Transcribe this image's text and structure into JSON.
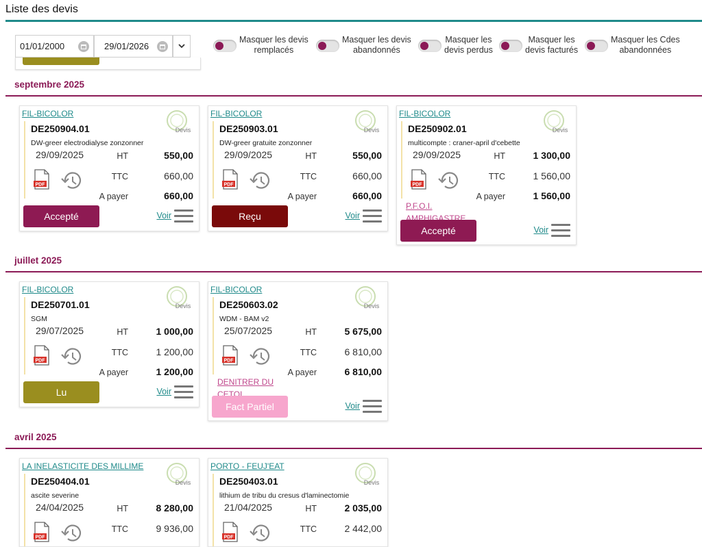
{
  "page": {
    "title": "Liste des devis"
  },
  "filters": {
    "date_from": "01/01/2000",
    "date_to": "29/01/2026",
    "toggles": [
      {
        "line1": "Masquer les devis",
        "line2": "remplacés"
      },
      {
        "line1": "Masquer les devis",
        "line2": "abandonnés"
      },
      {
        "line1": "Masquer les",
        "line2": "devis perdus"
      },
      {
        "line1": "Masquer les",
        "line2": "devis facturés"
      },
      {
        "line1": "Masquer les Cdes",
        "line2": "abandonnées"
      }
    ]
  },
  "labels": {
    "ht": "HT",
    "ttc": "TTC",
    "a_payer": "A payer",
    "voir": "Voir",
    "stamp": "Devis"
  },
  "colors": {
    "accent": "#8b1a56",
    "teal": "#1f8a8a",
    "accepte": "#8e1a53",
    "recu": "#7a0a0a",
    "lu": "#9a8e1f",
    "fact_partiel": "#f7a6cd"
  },
  "months": [
    {
      "label": "septembre 2025",
      "cards": [
        {
          "client": "FIL-BICOLOR",
          "number": "DE250904.01",
          "description": "DW-greer electrodialyse zonzonner",
          "date": "29/09/2025",
          "ht": "550,00",
          "ttc": "660,00",
          "a_payer": "660,00",
          "link": "",
          "status": "Accepté"
        },
        {
          "client": "FIL-BICOLOR",
          "number": "DE250903.01",
          "description": "DW-greer gratuite zonzonner",
          "date": "29/09/2025",
          "ht": "550,00",
          "ttc": "660,00",
          "a_payer": "660,00",
          "link": "",
          "status": "Reçu"
        },
        {
          "client": "FIL-BICOLOR",
          "number": "DE250902.01",
          "description": "multicompte : craner-april d'cebette",
          "date": "29/09/2025",
          "ht": "1 300,00",
          "ttc": "1 560,00",
          "a_payer": "1 560,00",
          "link": "P.F.O.I. AMPHIGASTRE",
          "status": "Accepté"
        }
      ]
    },
    {
      "label": "juillet 2025",
      "cards": [
        {
          "client": "FIL-BICOLOR",
          "number": "DE250701.01",
          "description": "SGM",
          "date": "29/07/2025",
          "ht": "1 000,00",
          "ttc": "1 200,00",
          "a_payer": "1 200,00",
          "link": "",
          "status": "Lu"
        },
        {
          "client": "FIL-BICOLOR",
          "number": "DE250603.02",
          "description": "WDM - BAM v2",
          "date": "25/07/2025",
          "ht": "5 675,00",
          "ttc": "6 810,00",
          "a_payer": "6 810,00",
          "link": "DENITRER DU CETOL",
          "status": "Fact Partiel"
        }
      ]
    },
    {
      "label": "avril 2025",
      "cards": [
        {
          "client": "LA INELASTICITE DES MILLIME",
          "number": "DE250404.01",
          "description": "ascite severine",
          "date": "24/04/2025",
          "ht": "8 280,00",
          "ttc": "9 936,00",
          "a_payer": "",
          "link": "",
          "status": ""
        },
        {
          "client": "PORTO - FEUJ'EAT",
          "number": "DE250403.01",
          "description": "lithium de tribu du cresus d'laminectomie",
          "date": "21/04/2025",
          "ht": "2 035,00",
          "ttc": "2 442,00",
          "a_payer": "",
          "link": "",
          "status": ""
        }
      ]
    }
  ]
}
